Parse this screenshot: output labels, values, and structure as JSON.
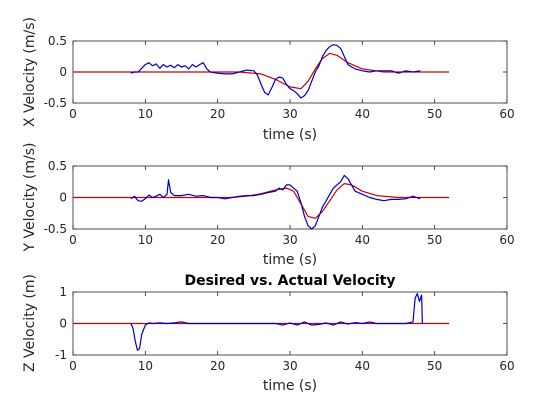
{
  "chart_data": [
    {
      "type": "line",
      "title": "",
      "xlabel": "time (s)",
      "ylabel": "X Velocity (m/s)",
      "xlim": [
        0,
        60
      ],
      "ylim": [
        -0.5,
        0.5
      ],
      "xticks": [
        "0",
        "10",
        "20",
        "30",
        "40",
        "50",
        "60"
      ],
      "yticks": [
        "-0.5",
        "0",
        "0.5"
      ],
      "ytick_values": [
        -0.5,
        0,
        0.5
      ],
      "grid": false,
      "series": [
        {
          "role": "desired",
          "color": "#d00000",
          "x": [
            0,
            23,
            26,
            28,
            30,
            31.5,
            32.5,
            33.5,
            34.5,
            35.5,
            36.5,
            38,
            40,
            43,
            52
          ],
          "y": [
            0,
            0,
            -0.03,
            -0.12,
            -0.24,
            -0.27,
            -0.15,
            0.05,
            0.22,
            0.3,
            0.27,
            0.15,
            0.05,
            0,
            0
          ]
        },
        {
          "role": "actual",
          "color": "#0000c0",
          "x": [
            8,
            8.5,
            9,
            10,
            10.5,
            11,
            11.5,
            12,
            12.5,
            13,
            13.5,
            14,
            14.5,
            15,
            15.5,
            16,
            16.5,
            17,
            17.5,
            18,
            18.5,
            19,
            20,
            21,
            22,
            23,
            24,
            25,
            25.5,
            26,
            26.5,
            27,
            27.5,
            28,
            28.5,
            29,
            29.5,
            30,
            30.5,
            31,
            31.5,
            32,
            32.5,
            33,
            33.5,
            34,
            34.5,
            35,
            35.5,
            36,
            36.5,
            37,
            37.5,
            38,
            39,
            40,
            41,
            42,
            43,
            44,
            45,
            46,
            47,
            48
          ],
          "y": [
            -0.02,
            0,
            0,
            0.12,
            0.15,
            0.1,
            0.13,
            0.06,
            0.12,
            0.08,
            0.11,
            0.07,
            0.12,
            0.08,
            0.1,
            0.05,
            0.12,
            0.08,
            0.12,
            0.15,
            0.05,
            0.0,
            -0.02,
            -0.03,
            -0.03,
            0.0,
            0.03,
            0.02,
            -0.05,
            -0.2,
            -0.33,
            -0.37,
            -0.25,
            -0.12,
            -0.08,
            -0.1,
            -0.2,
            -0.27,
            -0.3,
            -0.35,
            -0.42,
            -0.38,
            -0.3,
            -0.15,
            0.0,
            0.1,
            0.25,
            0.35,
            0.41,
            0.44,
            0.43,
            0.38,
            0.25,
            0.12,
            0.05,
            0.02,
            0.0,
            0.02,
            0.02,
            0.02,
            -0.02,
            0.02,
            0.0,
            0.02
          ]
        }
      ]
    },
    {
      "type": "line",
      "title": "",
      "xlabel": "time (s)",
      "ylabel": "Y Velocity (m/s)",
      "xlim": [
        0,
        60
      ],
      "ylim": [
        -0.5,
        0.5
      ],
      "xticks": [
        "0",
        "10",
        "20",
        "30",
        "40",
        "50",
        "60"
      ],
      "yticks": [
        "-0.5",
        "0",
        "0.5"
      ],
      "ytick_values": [
        -0.5,
        0,
        0.5
      ],
      "grid": false,
      "series": [
        {
          "role": "desired",
          "color": "#d00000",
          "x": [
            0,
            22,
            24,
            26,
            28,
            29.5,
            30.5,
            31.5,
            32.5,
            33.5,
            34.5,
            35.5,
            36.5,
            37.5,
            38.5,
            40,
            42,
            45,
            52
          ],
          "y": [
            0,
            0,
            0.02,
            0.06,
            0.12,
            0.15,
            0.1,
            -0.1,
            -0.3,
            -0.33,
            -0.22,
            -0.05,
            0.12,
            0.22,
            0.2,
            0.1,
            0.03,
            0,
            0
          ]
        },
        {
          "role": "actual",
          "color": "#0000c0",
          "x": [
            8,
            8.5,
            9,
            9.5,
            10,
            10.5,
            11,
            11.5,
            12,
            12.5,
            13,
            13.2,
            13.5,
            14,
            15,
            16,
            17,
            18,
            19,
            20,
            21,
            22,
            23,
            24,
            25,
            26,
            27,
            28,
            28.5,
            29,
            29.5,
            30,
            30.5,
            31,
            31.5,
            32,
            32.5,
            33,
            33.5,
            34,
            34.5,
            35,
            35.5,
            36,
            36.5,
            37,
            37.5,
            38,
            38.5,
            39,
            40,
            41,
            42,
            43,
            44,
            45,
            46,
            47,
            48
          ],
          "y": [
            -0.02,
            0.02,
            -0.05,
            -0.06,
            -0.02,
            0.04,
            0.0,
            0.02,
            0.05,
            0.0,
            0.05,
            0.28,
            0.08,
            0.03,
            0.03,
            0.05,
            0.02,
            0.03,
            0.0,
            0.0,
            -0.02,
            0.0,
            0.02,
            0.03,
            0.03,
            0.05,
            0.08,
            0.1,
            0.15,
            0.12,
            0.2,
            0.2,
            0.15,
            0.1,
            -0.08,
            -0.3,
            -0.45,
            -0.5,
            -0.45,
            -0.3,
            -0.15,
            -0.05,
            0.05,
            0.15,
            0.2,
            0.25,
            0.35,
            0.3,
            0.2,
            0.1,
            0.05,
            0.0,
            -0.03,
            -0.05,
            -0.03,
            -0.03,
            -0.02,
            0.02,
            -0.02
          ]
        }
      ]
    },
    {
      "type": "line",
      "title": "Desired vs. Actual Velocity",
      "xlabel": "time (s)",
      "ylabel": "Z Velocity (m)",
      "xlim": [
        0,
        60
      ],
      "ylim": [
        -1,
        1
      ],
      "xticks": [
        "0",
        "10",
        "20",
        "30",
        "40",
        "50",
        "60"
      ],
      "yticks": [
        "-1",
        "0",
        "1"
      ],
      "ytick_values": [
        -1,
        0,
        1
      ],
      "grid": false,
      "series": [
        {
          "role": "desired",
          "color": "#d00000",
          "x": [
            0,
            52
          ],
          "y": [
            0,
            0
          ]
        },
        {
          "role": "actual",
          "color": "#0000c0",
          "x": [
            8,
            8.3,
            8.6,
            8.9,
            9.2,
            9.5,
            10,
            10.5,
            11,
            12,
            13,
            14,
            15,
            16,
            17,
            28,
            29,
            30,
            31,
            32,
            33,
            34,
            35,
            36,
            37,
            38,
            39,
            40,
            41,
            42,
            46,
            47,
            47.3,
            47.6,
            47.9,
            48.2,
            48.3
          ],
          "y": [
            0,
            -0.15,
            -0.55,
            -0.85,
            -0.8,
            -0.35,
            -0.05,
            0.02,
            0.0,
            0.02,
            0.0,
            0.02,
            0.05,
            0.0,
            0.0,
            0.0,
            -0.05,
            0.02,
            -0.05,
            0.05,
            -0.05,
            -0.03,
            0.02,
            -0.05,
            0.05,
            -0.02,
            0.03,
            0.0,
            0.05,
            0.0,
            0.0,
            0.05,
            0.8,
            0.95,
            0.7,
            0.9,
            0.0
          ]
        }
      ]
    }
  ]
}
